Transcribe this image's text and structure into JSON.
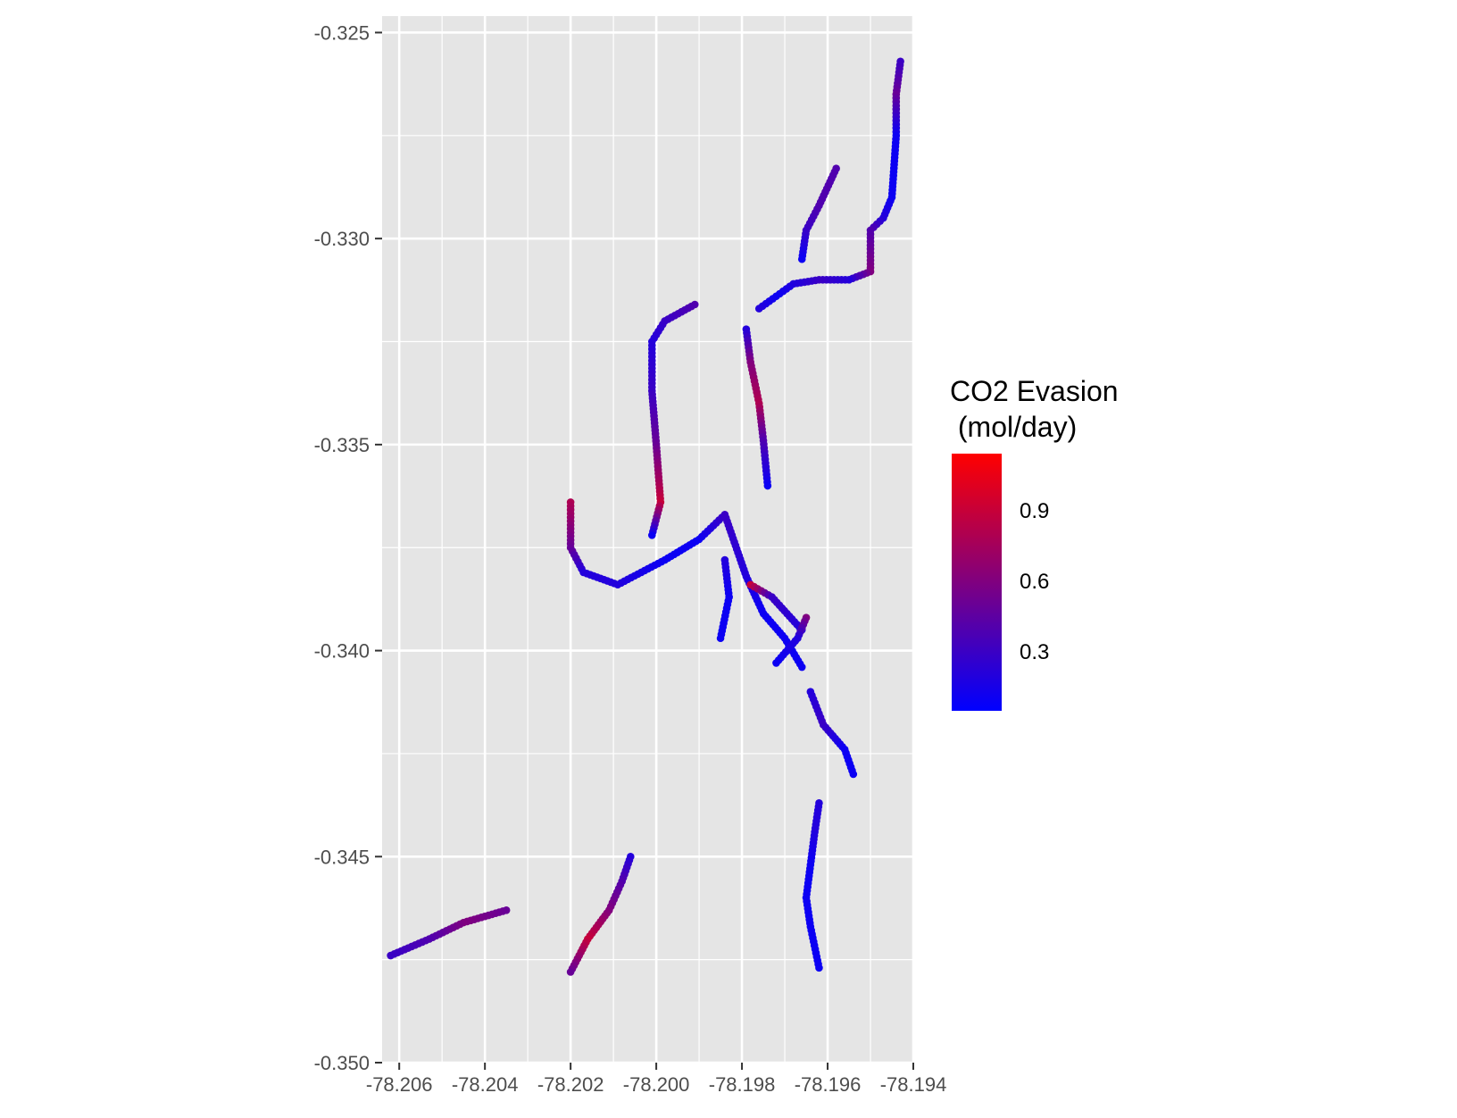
{
  "chart_data": {
    "type": "scatter",
    "title": "",
    "xlabel": "",
    "ylabel": "",
    "x_ticks": [
      "-78.206",
      "-78.204",
      "-78.202",
      "-78.200",
      "-78.198",
      "-78.196",
      "-78.194"
    ],
    "y_ticks": [
      "-0.325",
      "-0.330",
      "-0.335",
      "-0.340",
      "-0.345",
      "-0.350"
    ],
    "xlim": [
      -78.2064,
      -78.194
    ],
    "ylim": [
      -0.35,
      -0.3246
    ],
    "grid": true,
    "panel_background": "#e5e5e5",
    "grid_color": "#ffffff",
    "legend": {
      "title": "CO2 Evasion\n (mol/day)",
      "placement": "right",
      "type": "continuous-gradient",
      "low_color": "#0000ff",
      "high_color": "#ff0000",
      "range": [
        0.05,
        1.15
      ],
      "tick_labels": [
        "0.9",
        "0.6",
        "0.3"
      ],
      "tick_values": [
        0.9,
        0.6,
        0.3
      ]
    },
    "series": [
      {
        "points": [
          [
            -78.1943,
            -0.3257,
            0.3
          ],
          [
            -78.1944,
            -0.3265,
            0.5
          ],
          [
            -78.1944,
            -0.3275,
            0.1
          ],
          [
            -78.1945,
            -0.329,
            0.1
          ],
          [
            -78.1947,
            -0.3295,
            0.2
          ],
          [
            -78.195,
            -0.3298,
            0.4
          ],
          [
            -78.195,
            -0.3308,
            0.6
          ],
          [
            -78.1955,
            -0.331,
            0.2
          ],
          [
            -78.1962,
            -0.331,
            0.3
          ],
          [
            -78.1968,
            -0.3311,
            0.2
          ],
          [
            -78.1972,
            -0.3314,
            0.1
          ],
          [
            -78.1976,
            -0.3317,
            0.2
          ]
        ]
      },
      {
        "points": [
          [
            -78.1958,
            -0.3283,
            0.4
          ],
          [
            -78.1962,
            -0.3292,
            0.4
          ],
          [
            -78.1965,
            -0.3298,
            0.3
          ],
          [
            -78.1966,
            -0.3305,
            0.1
          ]
        ]
      },
      {
        "points": [
          [
            -78.1979,
            -0.3322,
            0.2
          ],
          [
            -78.1978,
            -0.333,
            0.6
          ],
          [
            -78.1976,
            -0.334,
            0.8
          ],
          [
            -78.1975,
            -0.3349,
            0.4
          ],
          [
            -78.1974,
            -0.336,
            0.1
          ]
        ]
      },
      {
        "points": [
          [
            -78.1991,
            -0.3316,
            0.4
          ],
          [
            -78.1998,
            -0.332,
            0.3
          ],
          [
            -78.2001,
            -0.3325,
            0.2
          ],
          [
            -78.2001,
            -0.3337,
            0.3
          ],
          [
            -78.2,
            -0.335,
            0.5
          ],
          [
            -78.1999,
            -0.3364,
            0.9
          ],
          [
            -78.2001,
            -0.3372,
            0.1
          ]
        ]
      },
      {
        "points": [
          [
            -78.202,
            -0.3364,
            0.8
          ],
          [
            -78.202,
            -0.3375,
            0.5
          ],
          [
            -78.2017,
            -0.3381,
            0.2
          ],
          [
            -78.2009,
            -0.3384,
            0.2
          ],
          [
            -78.1998,
            -0.3378,
            0.1
          ],
          [
            -78.199,
            -0.3373,
            0.1
          ],
          [
            -78.1984,
            -0.3367,
            0.3
          ],
          [
            -78.1979,
            -0.3382,
            0.2
          ],
          [
            -78.1975,
            -0.3391,
            0.1
          ],
          [
            -78.197,
            -0.3397,
            0.1
          ],
          [
            -78.1966,
            -0.3404,
            0.1
          ]
        ]
      },
      {
        "points": [
          [
            -78.1978,
            -0.3384,
            0.9
          ],
          [
            -78.1973,
            -0.3387,
            0.3
          ],
          [
            -78.1966,
            -0.3395,
            0.2
          ]
        ]
      },
      {
        "points": [
          [
            -78.1964,
            -0.341,
            0.2
          ],
          [
            -78.1961,
            -0.3418,
            0.3
          ],
          [
            -78.1956,
            -0.3424,
            0.1
          ],
          [
            -78.1954,
            -0.343,
            0.1
          ]
        ]
      },
      {
        "points": [
          [
            -78.1962,
            -0.3437,
            0.2
          ],
          [
            -78.1963,
            -0.3444,
            0.2
          ],
          [
            -78.1964,
            -0.3452,
            0.1
          ],
          [
            -78.1965,
            -0.346,
            0.1
          ],
          [
            -78.1964,
            -0.3467,
            0.1
          ],
          [
            -78.1962,
            -0.3477,
            0.1
          ]
        ]
      },
      {
        "points": [
          [
            -78.2006,
            -0.345,
            0.2
          ],
          [
            -78.2008,
            -0.3456,
            0.4
          ],
          [
            -78.2011,
            -0.3463,
            0.6
          ],
          [
            -78.2016,
            -0.347,
            0.9
          ],
          [
            -78.202,
            -0.3478,
            0.5
          ]
        ]
      },
      {
        "points": [
          [
            -78.2035,
            -0.3463,
            0.5
          ],
          [
            -78.2045,
            -0.3466,
            0.6
          ],
          [
            -78.2053,
            -0.347,
            0.4
          ],
          [
            -78.2062,
            -0.3474,
            0.3
          ]
        ]
      },
      {
        "points": [
          [
            -78.1965,
            -0.3392,
            0.6
          ],
          [
            -78.1967,
            -0.3397,
            0.2
          ],
          [
            -78.1972,
            -0.3403,
            0.1
          ]
        ]
      },
      {
        "points": [
          [
            -78.1984,
            -0.3378,
            0.2
          ],
          [
            -78.1983,
            -0.3387,
            0.1
          ],
          [
            -78.1985,
            -0.3397,
            0.1
          ]
        ]
      }
    ]
  }
}
